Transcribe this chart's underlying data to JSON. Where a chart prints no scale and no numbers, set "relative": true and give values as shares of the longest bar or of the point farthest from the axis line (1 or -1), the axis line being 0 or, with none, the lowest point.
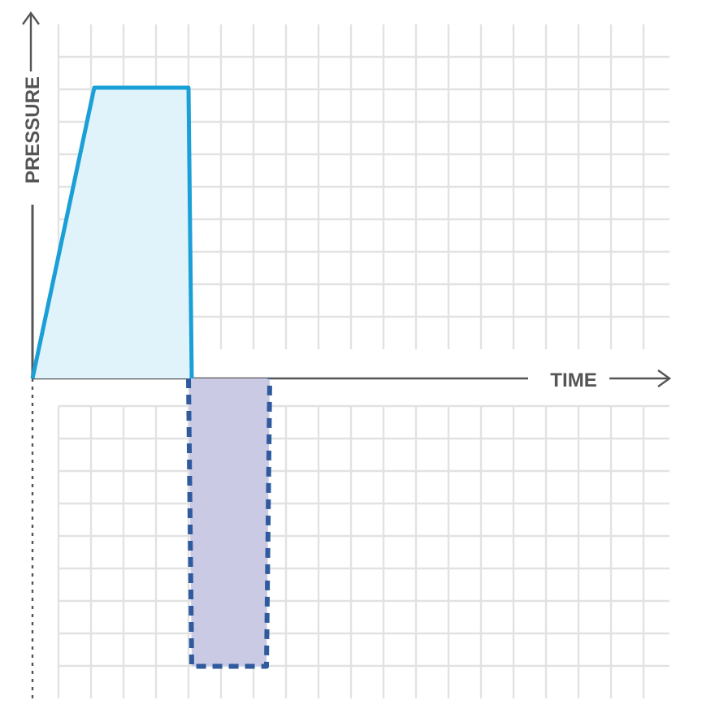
{
  "chart_data": {
    "type": "area",
    "xlabel": "TIME",
    "ylabel": "PRESSURE",
    "relative": true,
    "grid": true,
    "categories": [
      null,
      null,
      null,
      null,
      null,
      null,
      null,
      null,
      null,
      null,
      null,
      null,
      null,
      null,
      null,
      null,
      null,
      null,
      null,
      null,
      null,
      null,
      null,
      null,
      null,
      null,
      null,
      null,
      null,
      null,
      null,
      null,
      null,
      null,
      null,
      null,
      null,
      null,
      null,
      null,
      null,
      null,
      null,
      null,
      null,
      null,
      null,
      null,
      null,
      null,
      null,
      null,
      null,
      null,
      null,
      null,
      null,
      null,
      null,
      null,
      null,
      null,
      null,
      null,
      null,
      null,
      null,
      null,
      null,
      null,
      null,
      null,
      null,
      null,
      null,
      null,
      null,
      null,
      null,
      null,
      null,
      null,
      null,
      null,
      null,
      null,
      null,
      null,
      null,
      null,
      null,
      null,
      null,
      null,
      null,
      null,
      null,
      null,
      null,
      null,
      null,
      null,
      null,
      null,
      null,
      null,
      null,
      null,
      null,
      null,
      null,
      null,
      null,
      null,
      null,
      null,
      null,
      null,
      null,
      null,
      null,
      null,
      null,
      null,
      null,
      null,
      null,
      null,
      null,
      null,
      null,
      null,
      null,
      null,
      null,
      null,
      null,
      null,
      null,
      null,
      null,
      null,
      null,
      null,
      null,
      null,
      null,
      null,
      null,
      null,
      null,
      null,
      null,
      null,
      null,
      null,
      null,
      null,
      null,
      null,
      null,
      null,
      null,
      null,
      null,
      null,
      null,
      null,
      null,
      null,
      null,
      null,
      null,
      null,
      null,
      null,
      null,
      null,
      null,
      null,
      null,
      null,
      null,
      null,
      null,
      null,
      null,
      null,
      null,
      null,
      null,
      null,
      null,
      null,
      null,
      null,
      null
    ],
    "series": [
      {
        "color": "#1a9fd6",
        "values": [
          0,
          null,
          null,
          null,
          null,
          null,
          null,
          null,
          null,
          null,
          null,
          null,
          null,
          null,
          null,
          null,
          null,
          null,
          null,
          1,
          null,
          null,
          null,
          null,
          null,
          null,
          null,
          null,
          null,
          null,
          null,
          null,
          null,
          null,
          null,
          null,
          null,
          null,
          null,
          null,
          null,
          null,
          null,
          null,
          null,
          null,
          null,
          null,
          1,
          0,
          null,
          null,
          null,
          null,
          null,
          null,
          null,
          null,
          null,
          null,
          null,
          null,
          null,
          null,
          null,
          null,
          null,
          null,
          null,
          null,
          null,
          null,
          null,
          null,
          null,
          null,
          null,
          null,
          null,
          null,
          null,
          null,
          null,
          null,
          null,
          null,
          null,
          null,
          null,
          null,
          null,
          null,
          null,
          null,
          null,
          null,
          null,
          null,
          null,
          null,
          null,
          null,
          null,
          null,
          null,
          null,
          null,
          null,
          null,
          null,
          null,
          null,
          null,
          null,
          null,
          null,
          null,
          null,
          null,
          null,
          null,
          null,
          null,
          null,
          null,
          null,
          null,
          null,
          null,
          null,
          null,
          null,
          null,
          null,
          null,
          null,
          null,
          null,
          null,
          null,
          null,
          null,
          null,
          null,
          null,
          null,
          null,
          null,
          null,
          null,
          null,
          null,
          null,
          null,
          null,
          null,
          null,
          null,
          null,
          null,
          null,
          null,
          null,
          null,
          null,
          null,
          null,
          null,
          null,
          null,
          null,
          null,
          null,
          null,
          null,
          null,
          null,
          null,
          null,
          null,
          null,
          null,
          null,
          null,
          null,
          null,
          null,
          null,
          null,
          null,
          null,
          null,
          null,
          null,
          null,
          null,
          null
        ]
      },
      {
        "color": "#2f5a9e",
        "line_style": "dashed",
        "values": [
          null,
          null,
          null,
          null,
          null,
          null,
          null,
          null,
          null,
          null,
          null,
          null,
          null,
          null,
          null,
          null,
          null,
          null,
          null,
          null,
          null,
          null,
          null,
          null,
          null,
          null,
          null,
          null,
          null,
          null,
          null,
          null,
          null,
          null,
          null,
          null,
          null,
          null,
          null,
          null,
          null,
          null,
          null,
          null,
          null,
          null,
          null,
          null,
          0,
          -0.99,
          null,
          null,
          null,
          null,
          null,
          null,
          null,
          null,
          null,
          null,
          null,
          null,
          null,
          null,
          null,
          null,
          null,
          null,
          null,
          null,
          null,
          null,
          -0.99,
          0,
          null,
          null,
          null,
          null,
          null,
          null,
          null,
          null,
          null,
          null,
          null,
          null,
          null,
          null,
          null,
          null,
          null,
          null,
          null,
          null,
          null,
          null,
          null,
          null,
          null,
          null,
          null,
          null,
          null,
          null,
          null,
          null,
          null,
          null,
          null,
          null,
          null,
          null,
          null,
          null,
          null,
          null,
          null,
          null,
          null,
          null,
          null,
          null,
          null,
          null,
          null,
          null,
          null,
          null,
          null,
          null,
          null,
          null,
          null,
          null,
          null,
          null,
          null,
          null,
          null,
          null,
          null,
          null,
          null,
          null,
          null,
          null,
          null,
          null,
          null,
          null,
          null,
          null,
          null,
          null,
          null,
          null,
          null,
          null,
          null,
          null,
          null,
          null,
          null,
          null,
          null,
          null,
          null,
          null,
          null,
          null,
          null,
          null,
          null,
          null,
          null,
          null,
          null,
          null,
          null,
          null,
          null,
          null,
          null,
          null,
          null,
          null,
          null,
          null,
          null,
          null,
          null,
          null,
          null,
          null,
          null,
          null,
          null
        ]
      }
    ]
  }
}
